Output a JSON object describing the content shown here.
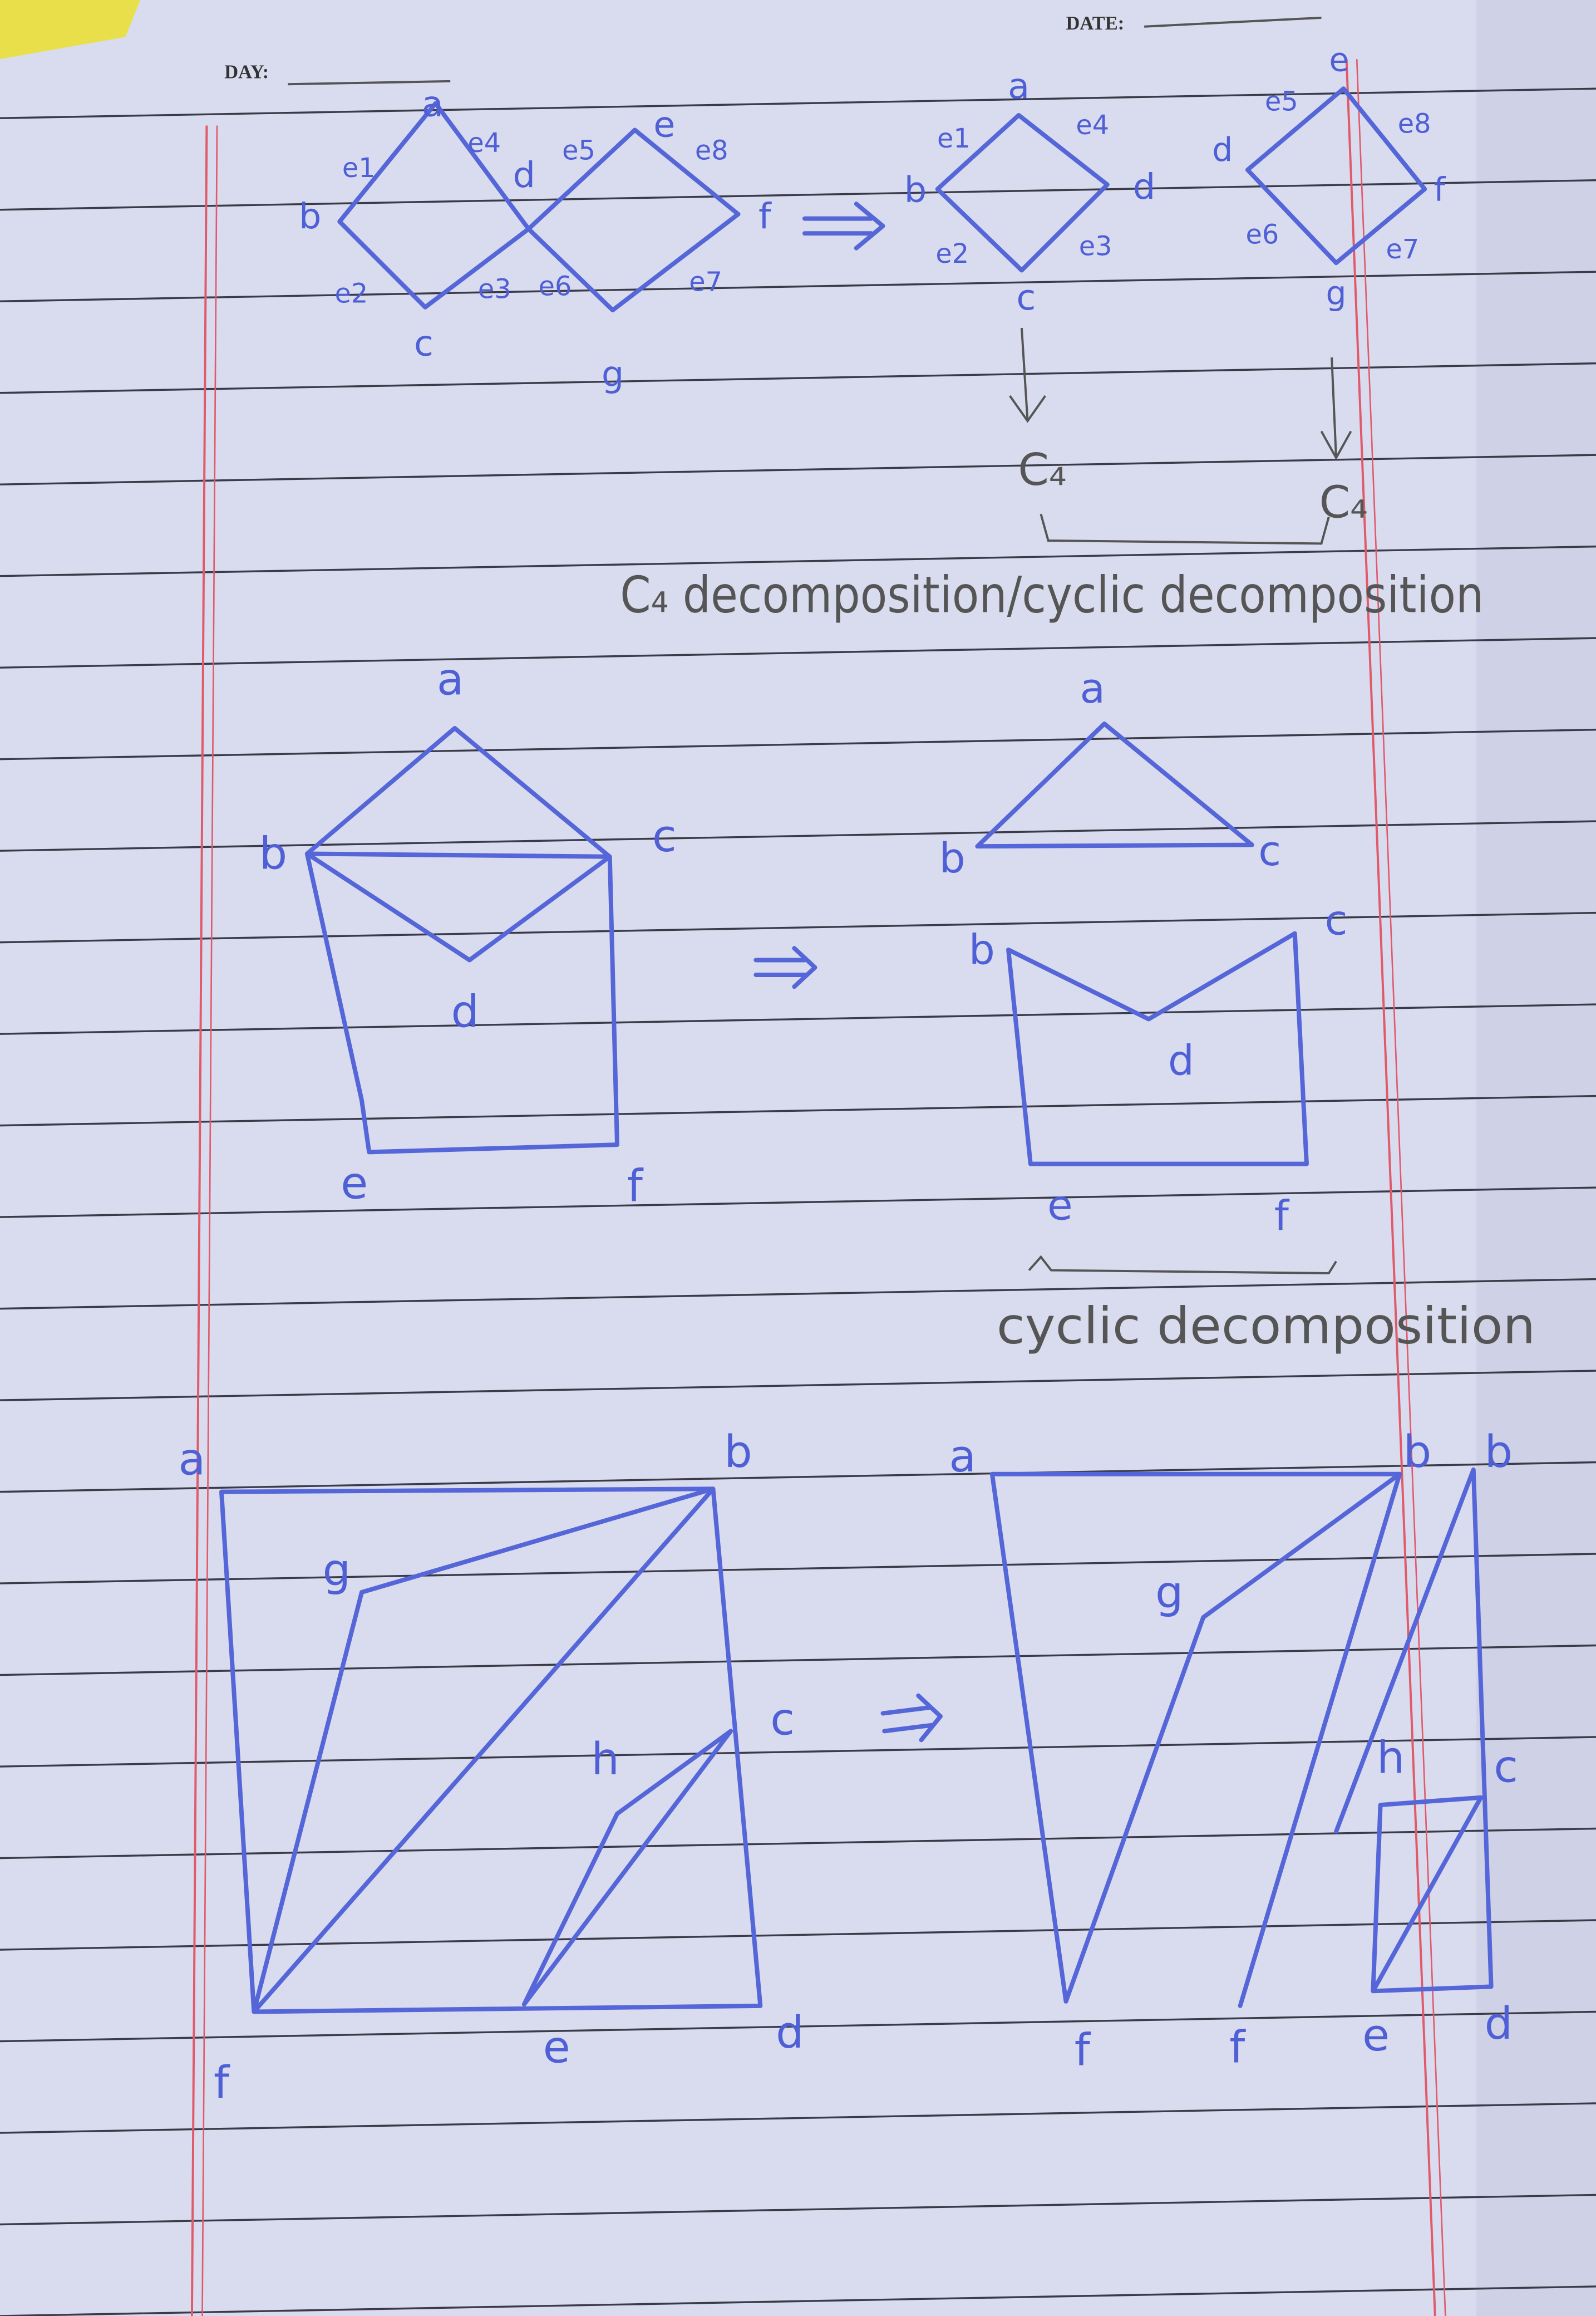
{
  "header": {
    "day": "DAY:",
    "date": "DATE:"
  },
  "diagram1": {
    "graph": {
      "vertices": [
        "a",
        "b",
        "c",
        "d",
        "e",
        "f",
        "g"
      ],
      "edges": [
        "e1",
        "e4",
        "e5",
        "e8",
        "e2",
        "e3",
        "e6",
        "e7"
      ]
    },
    "parts": [
      {
        "vertices": [
          "a",
          "b",
          "d",
          "c"
        ],
        "edges": [
          "e1",
          "e4",
          "e2",
          "e3"
        ],
        "type": "C₄"
      },
      {
        "vertices": [
          "e",
          "d",
          "f",
          "g"
        ],
        "edges": [
          "e5",
          "e8",
          "e6",
          "e7"
        ],
        "type": "C₄"
      }
    ],
    "caption": "C₄ decomposition/cyclic decomposition"
  },
  "diagram2": {
    "graph": {
      "vertices": [
        "a",
        "b",
        "c",
        "d",
        "e",
        "f"
      ]
    },
    "parts": [
      {
        "vertices": [
          "a",
          "b",
          "c"
        ]
      },
      {
        "vertices": [
          "b",
          "c",
          "d",
          "e",
          "f"
        ]
      }
    ],
    "caption": "cyclic decomposition"
  },
  "diagram3": {
    "graph": {
      "vertices": [
        "a",
        "b",
        "g",
        "h",
        "c",
        "f",
        "e",
        "d"
      ]
    },
    "result": {
      "vertices": [
        "a",
        "b",
        "b",
        "g",
        "h",
        "c",
        "f",
        "f",
        "e",
        "d"
      ]
    }
  }
}
